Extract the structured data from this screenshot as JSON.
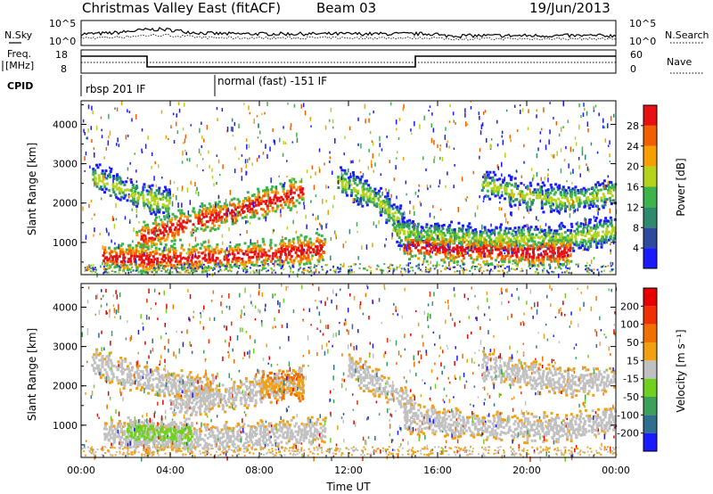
{
  "header": {
    "station": "Christmas Valley East (fitACF)",
    "beam": "Beam 03",
    "date": "19/Jun/2013"
  },
  "panels": {
    "nsky": {
      "label_left": "N.Sky",
      "label_right": "N.Search",
      "ticks_left": [
        "10^5",
        "10^0"
      ],
      "ticks_right": [
        "10^5",
        "10^0"
      ]
    },
    "freq": {
      "label_left_line1": "Freq.",
      "label_left_line2": "[MHz]",
      "label_right": "Nave",
      "ticks_left": [
        "18",
        "8"
      ],
      "ticks_right": [
        "60",
        "0"
      ]
    },
    "cpid": {
      "label": "CPID",
      "programs": [
        "rbsp 201 IF",
        "normal (fast) -151 IF"
      ]
    }
  },
  "chart_data": [
    {
      "type": "heatmap",
      "title": "",
      "xlabel": "",
      "ylabel": "Slant Range [km]",
      "ylim": [
        180,
        4600
      ],
      "yticks": [
        "1000",
        "2000",
        "3000",
        "4000"
      ],
      "colorbar": {
        "label": "Power [dB]",
        "ticks": [
          "4",
          "8",
          "12",
          "16",
          "20",
          "24",
          "28"
        ],
        "colors": [
          "#1a1aff",
          "#2d4a9e",
          "#2e8a6e",
          "#3cb44b",
          "#b4d31a",
          "#f5a000",
          "#f06000",
          "#e81010"
        ]
      },
      "bands": [
        {
          "x": [
            0.5,
            1.5,
            2.5,
            4.0
          ],
          "y": [
            2700,
            2450,
            2200,
            2000
          ],
          "level": "mid"
        },
        {
          "x": [
            2.5,
            4.0,
            6.0,
            8.0,
            10.0
          ],
          "y": [
            1100,
            1400,
            1700,
            2000,
            2350
          ],
          "level": "high"
        },
        {
          "x": [
            1.0,
            3.0,
            6.0,
            9.0,
            11.0
          ],
          "y": [
            650,
            600,
            650,
            750,
            900
          ],
          "level": "high"
        },
        {
          "x": [
            11.5,
            13.0,
            14.5
          ],
          "y": [
            2600,
            2200,
            1500
          ],
          "level": "mid"
        },
        {
          "x": [
            14.0,
            16.5,
            19.0,
            22.0,
            24.0
          ],
          "y": [
            1300,
            1150,
            1100,
            1150,
            1350
          ],
          "level": "mid"
        },
        {
          "x": [
            14.5,
            16.5,
            18.5,
            20.5,
            22.0
          ],
          "y": [
            950,
            850,
            800,
            750,
            800
          ],
          "level": "high"
        },
        {
          "x": [
            18.0,
            20.0,
            22.0,
            24.0
          ],
          "y": [
            2500,
            2200,
            2100,
            2300
          ],
          "level": "mid"
        }
      ]
    },
    {
      "type": "heatmap",
      "title": "",
      "xlabel": "Time UT",
      "ylabel": "Slant Range [km]",
      "ylim": [
        180,
        4600
      ],
      "yticks": [
        "1000",
        "2000",
        "3000",
        "4000"
      ],
      "xticks": [
        "00:00",
        "04:00",
        "08:00",
        "12:00",
        "16:00",
        "20:00",
        "00:00"
      ],
      "colorbar": {
        "label": "Velocity [m s⁻¹]",
        "ticks": [
          "200",
          "100",
          "50",
          "15",
          "-15",
          "-50",
          "-100",
          "-200"
        ],
        "colors": [
          "#1a1aff",
          "#2e6e8e",
          "#3aa05a",
          "#6fd020",
          "#c0c0c0",
          "#f0a010",
          "#f07000",
          "#f03000",
          "#e80000"
        ]
      },
      "bands": [
        {
          "x": [
            0.5,
            2.0,
            4.0,
            6.0
          ],
          "y": [
            2600,
            2300,
            2050,
            1900
          ],
          "level": "gray"
        },
        {
          "x": [
            4.0,
            6.0,
            8.0,
            10.0
          ],
          "y": [
            1500,
            1700,
            1900,
            2200
          ],
          "level": "gray"
        },
        {
          "x": [
            1.0,
            3.0,
            5.5,
            8.0,
            11.0
          ],
          "y": [
            800,
            700,
            700,
            750,
            900
          ],
          "level": "gray"
        },
        {
          "x": [
            2.0,
            3.5,
            5.0
          ],
          "y": [
            850,
            800,
            800
          ],
          "level": "green"
        },
        {
          "x": [
            8.0,
            9.0,
            10.0
          ],
          "y": [
            2000,
            2050,
            2000
          ],
          "level": "orange"
        },
        {
          "x": [
            12.0,
            13.5,
            15.0
          ],
          "y": [
            2500,
            2000,
            1400
          ],
          "level": "gray"
        },
        {
          "x": [
            14.5,
            17.0,
            19.5,
            22.0,
            24.0
          ],
          "y": [
            1200,
            1050,
            950,
            950,
            1200
          ],
          "level": "gray"
        },
        {
          "x": [
            18.0,
            20.0,
            22.0,
            24.0
          ],
          "y": [
            2500,
            2300,
            2100,
            2200
          ],
          "level": "gray"
        }
      ]
    }
  ]
}
